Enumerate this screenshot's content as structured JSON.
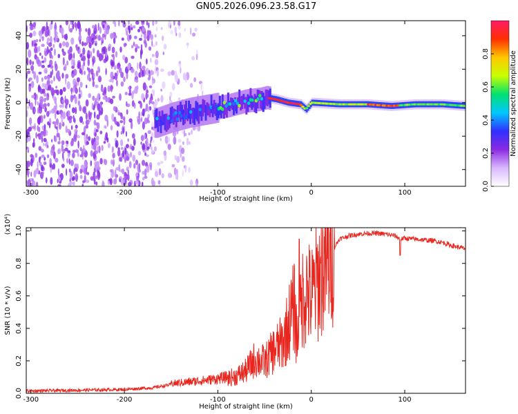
{
  "title": "GN05.2026.096.23.58.G17",
  "chart_data": [
    {
      "type": "heatmap",
      "xlabel": "Height of straight line (km)",
      "ylabel": "Frequency (Hz)",
      "xlim": [
        -305,
        165
      ],
      "ylim": [
        -50,
        49
      ],
      "x_ticks": [
        -300,
        -200,
        -100,
        0,
        100
      ],
      "y_ticks": [
        40,
        20,
        0,
        -20,
        -40
      ],
      "ridge": [
        {
          "x": -165,
          "y": -12
        },
        {
          "x": -150,
          "y": -9
        },
        {
          "x": -130,
          "y": -6
        },
        {
          "x": -110,
          "y": -4
        },
        {
          "x": -90,
          "y": -2
        },
        {
          "x": -70,
          "y": 1
        },
        {
          "x": -55,
          "y": 2
        },
        {
          "x": -48,
          "y": 3
        },
        {
          "x": -38,
          "y": 2
        },
        {
          "x": -25,
          "y": 0
        },
        {
          "x": -12,
          "y": -1
        },
        {
          "x": -6,
          "y": -4
        },
        {
          "x": 0,
          "y": 0
        },
        {
          "x": 30,
          "y": -1
        },
        {
          "x": 60,
          "y": -1
        },
        {
          "x": 85,
          "y": -2
        },
        {
          "x": 110,
          "y": -1
        },
        {
          "x": 140,
          "y": -1
        },
        {
          "x": 165,
          "y": -2
        }
      ],
      "colorbar": {
        "label": "Normalized spectral amplitude",
        "ticks": [
          0.0,
          0.2,
          0.4,
          0.6,
          0.8
        ],
        "range": [
          0,
          1
        ],
        "colormap": [
          "#ffffff",
          "#d9b8ff",
          "#8a2be2",
          "#3030ff",
          "#00c8ff",
          "#00e070",
          "#c8ff00",
          "#ffc800",
          "#ff3000",
          "#ff1a66"
        ]
      }
    },
    {
      "type": "line",
      "xlabel": "Height of straight line (km)",
      "ylabel": "SNR (10 * v/v)",
      "scale_label": "(x10⁴)",
      "xlim": [
        -305,
        165
      ],
      "ylim": [
        0,
        1.02
      ],
      "x_ticks": [
        -300,
        -200,
        -100,
        0,
        100
      ],
      "y_ticks": [
        0.0,
        0.2,
        0.4,
        0.6,
        0.8,
        1.0
      ],
      "series": [
        {
          "color": "#e8261e",
          "x": [
            -305,
            -250,
            -200,
            -170,
            -150,
            -130,
            -110,
            -95,
            -80,
            -70,
            -60,
            -50,
            -40,
            -30,
            -22,
            -18,
            -15,
            -10,
            -5,
            0,
            10,
            20,
            25,
            30,
            40,
            50,
            60,
            70,
            80,
            90,
            95,
            100,
            110,
            120,
            130,
            140,
            150,
            165
          ],
          "y": [
            0.01,
            0.015,
            0.02,
            0.03,
            0.05,
            0.06,
            0.07,
            0.08,
            0.1,
            0.13,
            0.2,
            0.18,
            0.25,
            0.3,
            0.45,
            0.5,
            0.3,
            0.55,
            0.6,
            0.55,
            0.7,
            0.8,
            0.9,
            0.95,
            0.97,
            0.98,
            0.985,
            0.985,
            0.98,
            0.97,
            0.95,
            0.955,
            0.95,
            0.945,
            0.94,
            0.93,
            0.91,
            0.89
          ]
        }
      ]
    }
  ]
}
